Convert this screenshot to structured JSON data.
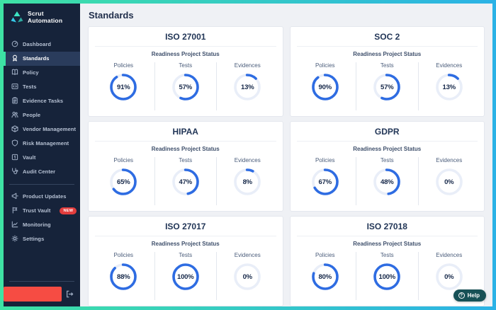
{
  "brand": {
    "line1": "Scrut",
    "line2": "Automation"
  },
  "sidebar": {
    "items": [
      {
        "label": "Dashboard",
        "icon": "gauge-icon",
        "active": false
      },
      {
        "label": "Standards",
        "icon": "award-icon",
        "active": true
      },
      {
        "label": "Policy",
        "icon": "book-icon",
        "active": false
      },
      {
        "label": "Tests",
        "icon": "code-icon",
        "active": false
      },
      {
        "label": "Evidence Tasks",
        "icon": "clipboard-icon",
        "active": false
      },
      {
        "label": "People",
        "icon": "users-icon",
        "active": false
      },
      {
        "label": "Vendor Management",
        "icon": "package-icon",
        "active": false
      },
      {
        "label": "Risk Management",
        "icon": "shield-icon",
        "active": false
      },
      {
        "label": "Vault",
        "icon": "vault-icon",
        "active": false
      },
      {
        "label": "Audit Center",
        "icon": "stethoscope-icon",
        "active": false
      }
    ],
    "secondary_items": [
      {
        "label": "Product Updates",
        "icon": "megaphone-icon",
        "active": false
      },
      {
        "label": "Trust Vault",
        "icon": "flag-icon",
        "active": false,
        "badge": "NEW"
      },
      {
        "label": "Monitoring",
        "icon": "chart-icon",
        "active": false
      },
      {
        "label": "Settings",
        "icon": "gear-icon",
        "active": false
      }
    ]
  },
  "page": {
    "title": "Standards"
  },
  "card_subtitle": "Readiness Project Status",
  "metric_labels": {
    "policies": "Policies",
    "tests": "Tests",
    "evidences": "Evidences"
  },
  "chart_data": {
    "type": "donut-gauges",
    "note": "percent complete per metric per standard"
  },
  "standards": [
    {
      "name": "ISO 27001",
      "policies": 91,
      "policies_text": "91%",
      "tests": 57,
      "tests_text": "57%",
      "evidences": 13,
      "evidences_text": "13%"
    },
    {
      "name": "SOC 2",
      "policies": 90,
      "policies_text": "90%",
      "tests": 57,
      "tests_text": "57%",
      "evidences": 13,
      "evidences_text": "13%"
    },
    {
      "name": "HIPAA",
      "policies": 65,
      "policies_text": "65%",
      "tests": 47,
      "tests_text": "47%",
      "evidences": 8,
      "evidences_text": "8%"
    },
    {
      "name": "GDPR",
      "policies": 67,
      "policies_text": "67%",
      "tests": 48,
      "tests_text": "48%",
      "evidences": 0,
      "evidences_text": "0%"
    },
    {
      "name": "ISO 27017",
      "policies": 88,
      "policies_text": "88%",
      "tests": 100,
      "tests_text": "100%",
      "evidences": 0,
      "evidences_text": "0%"
    },
    {
      "name": "ISO 27018",
      "policies": 80,
      "policies_text": "80%",
      "tests": 100,
      "tests_text": "100%",
      "evidences": 0,
      "evidences_text": "0%"
    }
  ],
  "help": {
    "label": "Help"
  },
  "colors": {
    "frame_gradient_start": "#3ee2a4",
    "frame_gradient_end": "#2bb2e6",
    "sidebar_bg": "#16233a",
    "active_accent": "#3ae2a5",
    "donut_value": "#2e6ce2",
    "donut_track": "#e9eef8",
    "badge_red": "#e23d3d",
    "redacted_red": "#f64c43",
    "help_bg": "#175156",
    "content_bg": "#eff1f5"
  }
}
